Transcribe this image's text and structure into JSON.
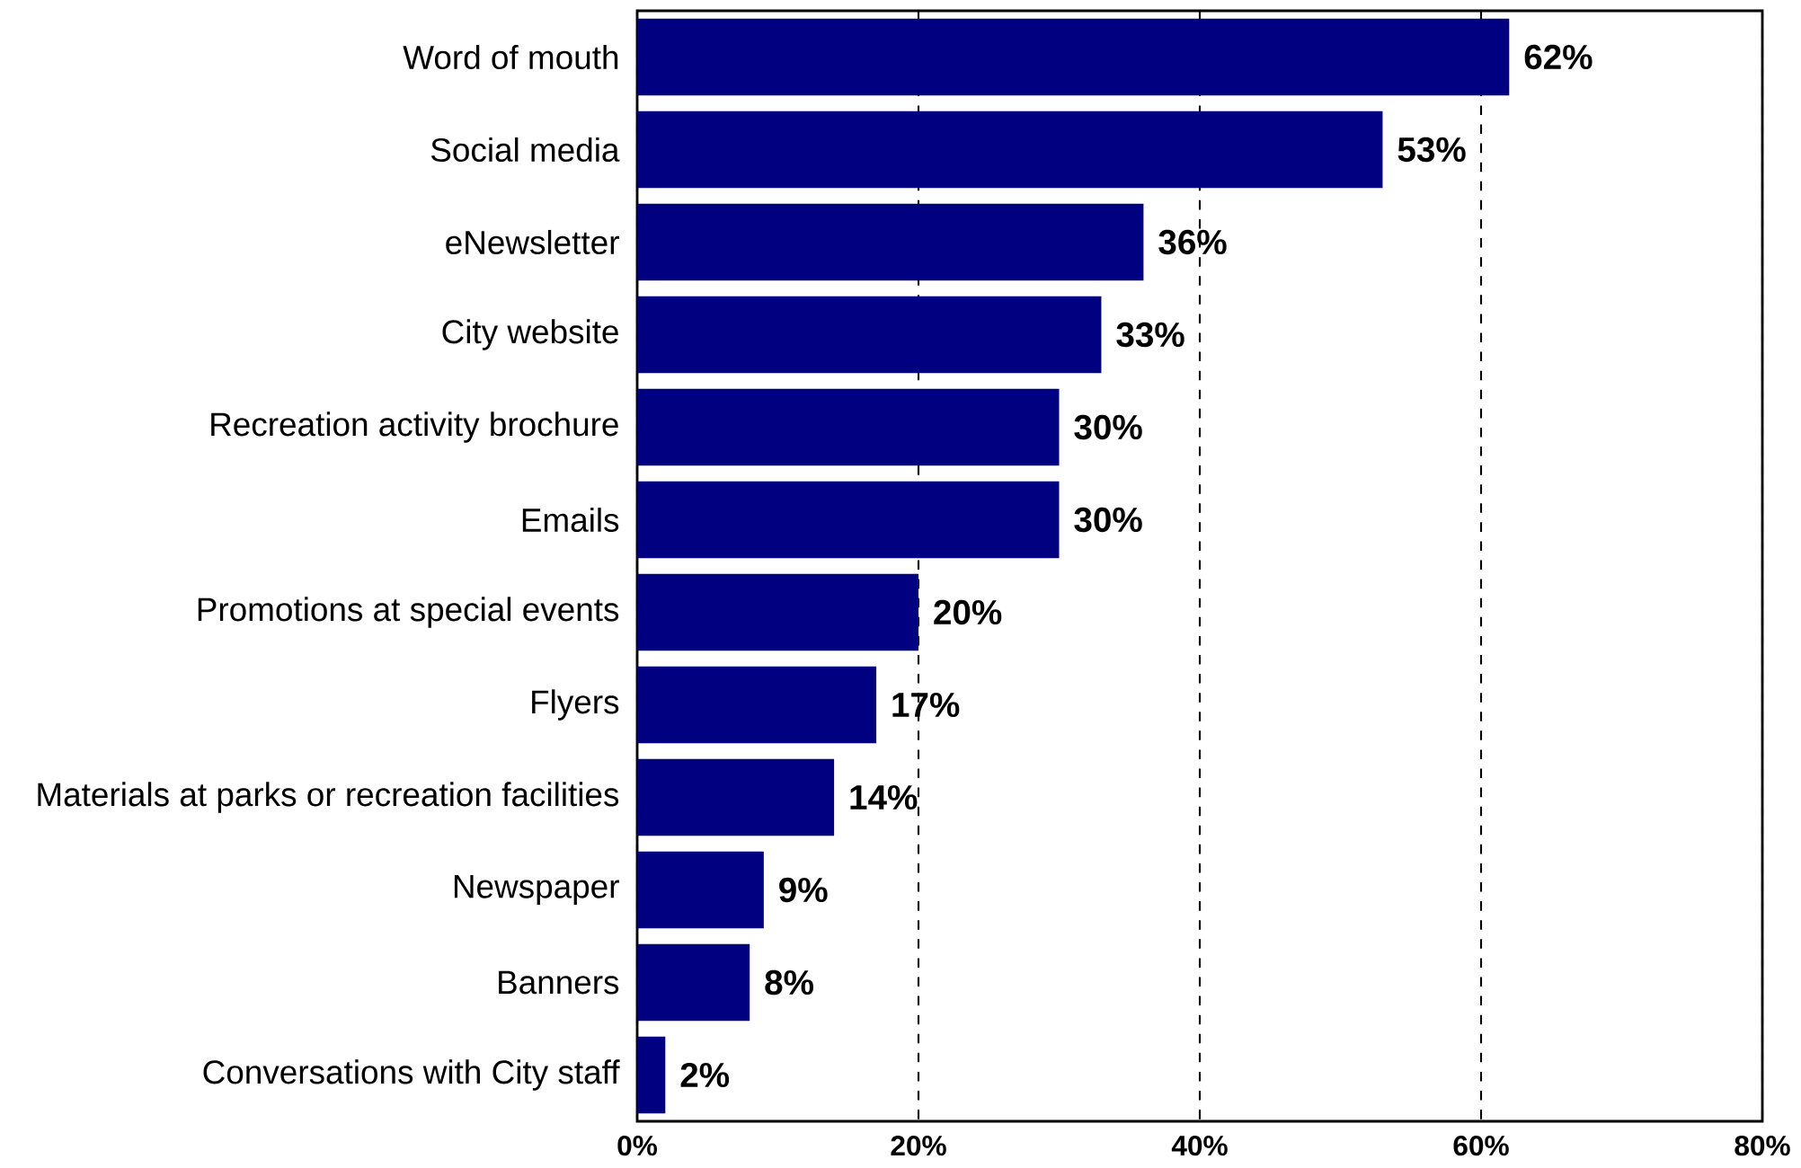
{
  "chart_data": {
    "type": "bar",
    "orientation": "horizontal",
    "categories": [
      "Word of mouth",
      "Social media",
      "eNewsletter",
      "City website",
      "Recreation activity brochure",
      "Emails",
      "Promotions at special events",
      "Flyers",
      "Materials at parks or recreation facilities",
      "Newspaper",
      "Banners",
      "Conversations with City staff"
    ],
    "values": [
      62,
      53,
      36,
      33,
      30,
      30,
      20,
      17,
      14,
      9,
      8,
      2
    ],
    "value_labels": [
      "62%",
      "53%",
      "36%",
      "33%",
      "30%",
      "30%",
      "20%",
      "17%",
      "14%",
      "9%",
      "8%",
      "2%"
    ],
    "color": "#000080",
    "xlim": [
      0,
      80
    ],
    "xticks": [
      {
        "value": 0,
        "label": "0%"
      },
      {
        "value": 20,
        "label": "20%"
      },
      {
        "value": 40,
        "label": "40%"
      },
      {
        "value": 60,
        "label": "60%"
      },
      {
        "value": 80,
        "label": "80%"
      }
    ],
    "grid": "x",
    "line_style": "dashed"
  }
}
